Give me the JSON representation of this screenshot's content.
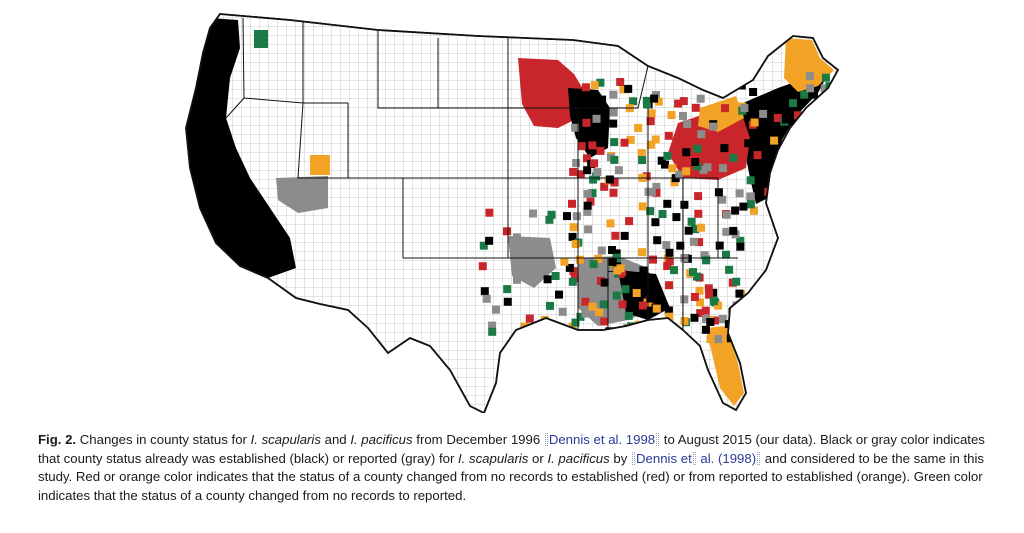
{
  "figure": {
    "label": "Fig. 2.",
    "caption": {
      "p1": "Changes in county status for ",
      "sp1": "I. scapularis",
      "p2": " and ",
      "sp2": "I. pacificus",
      "p3": " from December 1996 ",
      "cite1": "Dennis et al. 1998",
      "p4": " to August 2015 (our data). Black or gray color indicates that county status already was established (black) or reported (gray) for ",
      "sp3": "I. scapularis",
      "p5": " or ",
      "sp4": "I. pacificus",
      "p6": " by ",
      "cite2a": "Dennis et",
      "cite2b": " al. (1998)",
      "p7": " and considered to be the same in this study. Red or orange color indicates that the status of a county changed from no records to established (red) or from reported to established (orange). Green color indicates that the status of a county changed from no records to reported."
    }
  },
  "map": {
    "legend_colors": {
      "established": "#000000",
      "reported": "#8c8c8c",
      "no_records_to_established": "#c8262b",
      "reported_to_established": "#f2a326",
      "no_records_to_reported": "#1a7a45",
      "no_records": "#ffffff"
    }
  }
}
